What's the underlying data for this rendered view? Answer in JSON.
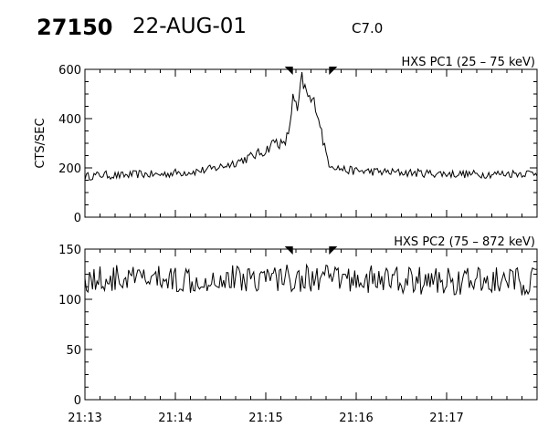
{
  "header": {
    "event_id": "27150",
    "date": "22-AUG-01",
    "goes_class": "C7.0"
  },
  "chart_data": [
    {
      "type": "line",
      "title": "HXS PC1 (25 – 75 keV)",
      "ylabel": "CTS/SEC",
      "xlim": [
        "21:13",
        "21:18"
      ],
      "ylim": [
        0,
        600
      ],
      "yticks": [
        0,
        200,
        400,
        600
      ],
      "interval_markers": [
        "21:15.3",
        "21:15.7"
      ],
      "series": [
        {
          "x": [
            0,
            0.2,
            0.4,
            0.6,
            0.8,
            1.0,
            1.2,
            1.4,
            1.6,
            1.8,
            2.0,
            2.1,
            2.2,
            2.25,
            2.3,
            2.35,
            2.4,
            2.45,
            2.5,
            2.55,
            2.6,
            2.65,
            2.7,
            2.8,
            2.9,
            3.0,
            3.2,
            3.4,
            3.6,
            3.8,
            4.0,
            4.2,
            4.4,
            4.6,
            4.8,
            5.0
          ],
          "y": [
            165,
            172,
            168,
            175,
            172,
            180,
            185,
            195,
            215,
            240,
            270,
            310,
            290,
            340,
            480,
            430,
            560,
            500,
            470,
            460,
            380,
            280,
            220,
            200,
            190,
            188,
            185,
            182,
            180,
            178,
            176,
            175,
            174,
            176,
            178,
            180
          ]
        }
      ]
    },
    {
      "type": "line",
      "title": "HXS PC2 (75 – 872 keV)",
      "ylabel": "",
      "xlim": [
        "21:13",
        "21:18"
      ],
      "ylim": [
        0,
        150
      ],
      "yticks": [
        0,
        50,
        100,
        150
      ],
      "xticks": [
        "21:13",
        "21:14",
        "21:15",
        "21:16",
        "21:17"
      ],
      "interval_markers": [
        "21:15.3",
        "21:15.7"
      ],
      "series": [
        {
          "x": [
            0,
            1,
            2,
            3,
            4,
            5
          ],
          "y": [
            120,
            120,
            122,
            120,
            118,
            118
          ]
        }
      ]
    }
  ]
}
